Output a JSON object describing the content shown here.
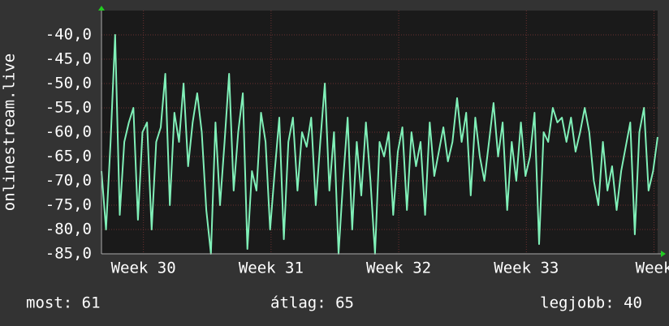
{
  "chart_data": {
    "type": "line",
    "ylabel": "onlinestream.live",
    "x": [
      0,
      0.25,
      0.5,
      0.75,
      1,
      1.25,
      1.5,
      1.75,
      2,
      2.25,
      2.5,
      2.75,
      3,
      3.25,
      3.5,
      3.75,
      4,
      4.25,
      4.5,
      4.75,
      5,
      5.25,
      5.5,
      5.75,
      6,
      6.25,
      6.5,
      6.75,
      7,
      7.25,
      7.5,
      7.75,
      8,
      8.25,
      8.5,
      8.75,
      9,
      9.25,
      9.5,
      9.75,
      10,
      10.25,
      10.5,
      10.75,
      11,
      11.25,
      11.5,
      11.75,
      12,
      12.25,
      12.5,
      12.75,
      13,
      13.25,
      13.5,
      13.75,
      14,
      14.25,
      14.5,
      14.75,
      15,
      15.25,
      15.5,
      15.75,
      16,
      16.25,
      16.5,
      16.75,
      17,
      17.25,
      17.5,
      17.75,
      18,
      18.25,
      18.5,
      18.75,
      19,
      19.25,
      19.5,
      19.75,
      20,
      20.25,
      20.5,
      20.75,
      21,
      21.25,
      21.5,
      21.75,
      22,
      22.25,
      22.5,
      22.75,
      23,
      23.25,
      23.5,
      23.75,
      24,
      24.25,
      24.5,
      24.75,
      25,
      25.25,
      25.5,
      25.75,
      26,
      26.25,
      26.5,
      26.75,
      27,
      27.25,
      27.5,
      27.75,
      28,
      28.25,
      28.5,
      28.75,
      29,
      29.25,
      29.5,
      29.75,
      30,
      30.25,
      30.5
    ],
    "series": [
      {
        "color": "#80f0b8",
        "values": [
          -68,
          -80,
          -62,
          -40,
          -77,
          -62,
          -58,
          -55,
          -78,
          -60,
          -58,
          -80,
          -62,
          -59,
          -48,
          -75,
          -56,
          -62,
          -50,
          -67,
          -58,
          -52,
          -60,
          -76,
          -85,
          -58,
          -75,
          -62,
          -48,
          -72,
          -60,
          -52,
          -84,
          -68,
          -72,
          -56,
          -62,
          -80,
          -68,
          -57,
          -82,
          -62,
          -57,
          -72,
          -60,
          -63,
          -57,
          -75,
          -62,
          -50,
          -72,
          -60,
          -85,
          -70,
          -57,
          -80,
          -62,
          -73,
          -58,
          -70,
          -85,
          -62,
          -65,
          -60,
          -77,
          -64,
          -59,
          -76,
          -60,
          -67,
          -62,
          -77,
          -58,
          -69,
          -64,
          -59,
          -66,
          -62,
          -53,
          -62,
          -56,
          -73,
          -57,
          -65,
          -70,
          -62,
          -54,
          -65,
          -58,
          -76,
          -62,
          -70,
          -58,
          -69,
          -65,
          -56,
          -83,
          -60,
          -62,
          -55,
          -58,
          -57,
          -62,
          -57,
          -64,
          -60,
          -55,
          -60,
          -70,
          -75,
          -62,
          -72,
          -67,
          -76,
          -68,
          -63,
          -58,
          -81,
          -60,
          -55,
          -72,
          -68,
          -61
        ]
      }
    ],
    "xlim": [
      0,
      30.5
    ],
    "xticks": [
      {
        "value": 2.3,
        "label": "Week 30"
      },
      {
        "value": 9.3,
        "label": "Week 31"
      },
      {
        "value": 16.3,
        "label": "Week 32"
      },
      {
        "value": 23.3,
        "label": "Week 33"
      },
      {
        "value": 30.3,
        "label": "Week"
      }
    ],
    "ylim": [
      -85,
      -35
    ],
    "yticks": [
      {
        "value": -40,
        "label": "-40,0"
      },
      {
        "value": -45,
        "label": "-45,0"
      },
      {
        "value": -50,
        "label": "-50,0"
      },
      {
        "value": -55,
        "label": "-55,0"
      },
      {
        "value": -60,
        "label": "-60,0"
      },
      {
        "value": -65,
        "label": "-65,0"
      },
      {
        "value": -70,
        "label": "-70,0"
      },
      {
        "value": -75,
        "label": "-75,0"
      },
      {
        "value": -80,
        "label": "-80,0"
      },
      {
        "value": -85,
        "label": "-85,0"
      }
    ],
    "grid": true,
    "footer": [
      "most: 61",
      "átlag: 65",
      "legjobb: 40"
    ]
  }
}
